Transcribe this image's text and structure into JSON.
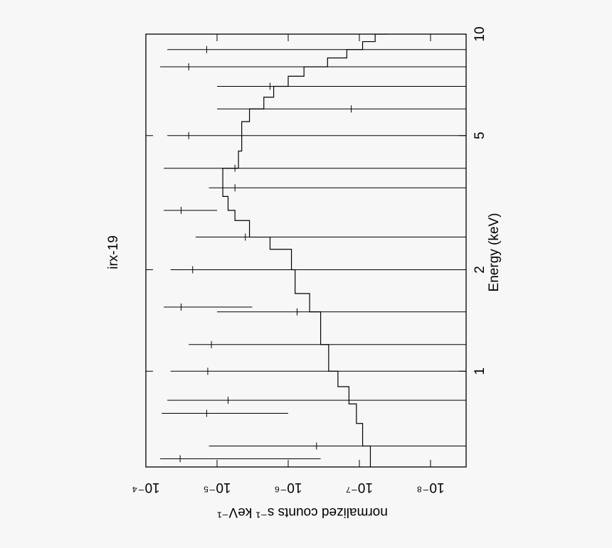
{
  "chart_data": {
    "type": "spectrum",
    "title": "irx-19",
    "x_label": "Energy (keV)",
    "y_label": "normalized counts s⁻¹ keV⁻¹",
    "x_scale": "log",
    "y_scale": "log",
    "xlim": [
      0.52,
      10
    ],
    "ylim": [
      0.0001,
      3.16e-09
    ],
    "xticks": [
      1,
      2,
      5,
      10
    ],
    "yticks": [
      {
        "value": 0.0001,
        "label": "10⁻⁴"
      },
      {
        "value": 1e-05,
        "label": "10⁻⁵"
      },
      {
        "value": 1e-06,
        "label": "10⁻⁶"
      },
      {
        "value": 1e-07,
        "label": "10⁻⁷"
      },
      {
        "value": 1e-08,
        "label": "10⁻⁸"
      }
    ],
    "color": "#000000",
    "model": {
      "x": [
        0.52,
        0.6,
        0.7,
        0.8,
        0.9,
        1.0,
        1.2,
        1.5,
        1.7,
        2.0,
        2.3,
        2.5,
        2.8,
        3.0,
        3.3,
        3.5,
        4.0,
        4.5,
        5.0,
        5.5,
        6.0,
        6.5,
        7.0,
        7.5,
        8.0,
        8.5,
        9.0,
        9.5,
        10
      ],
      "values": [
        7e-08,
        9e-08,
        1.1e-07,
        1.4e-07,
        2e-07,
        2.7e-07,
        3.5e-07,
        5e-07,
        8e-07,
        9e-07,
        1.8e-06,
        3.5e-06,
        5.6e-06,
        7e-06,
        8.3e-06,
        8.3e-06,
        5e-06,
        4.5e-06,
        4.5e-06,
        3.5e-06,
        2.2e-06,
        1.6e-06,
        1e-06,
        6e-07,
        2.8e-07,
        1.5e-07,
        9e-08,
        6e-08,
        4e-08
      ]
    },
    "data": {
      "x": [
        0.55,
        0.6,
        0.75,
        0.82,
        1.0,
        1.2,
        1.5,
        1.55,
        2.0,
        2.5,
        3.0,
        3.5,
        4.0,
        5.0,
        6.0,
        7.0,
        8.0,
        9.0
      ],
      "values": [
        3.3e-05,
        4e-07,
        1.4e-05,
        7e-06,
        1.35e-05,
        1.2e-05,
        7.5e-07,
        3.2e-05,
        2.2e-05,
        4e-06,
        3.2e-05,
        5.6e-06,
        5.6e-06,
        2.5e-05,
        1.3e-07,
        1.8e-06,
        2.5e-05,
        1.4e-05
      ],
      "lower": [
        3.5e-07,
        1e-09,
        1e-06,
        1e-09,
        1e-09,
        1e-09,
        1e-09,
        3.2e-06,
        1e-09,
        1e-09,
        1e-05,
        1e-09,
        1e-09,
        1e-09,
        1e-09,
        1e-09,
        1e-09,
        1e-09
      ],
      "upper": [
        6.3e-05,
        1.3e-05,
        6e-05,
        5e-05,
        4.5e-05,
        2.5e-05,
        1e-05,
        5.6e-05,
        4.5e-05,
        2e-05,
        5.6e-05,
        1.3e-05,
        5.6e-05,
        5e-05,
        1e-05,
        1e-05,
        6.3e-05,
        5e-05
      ]
    }
  }
}
